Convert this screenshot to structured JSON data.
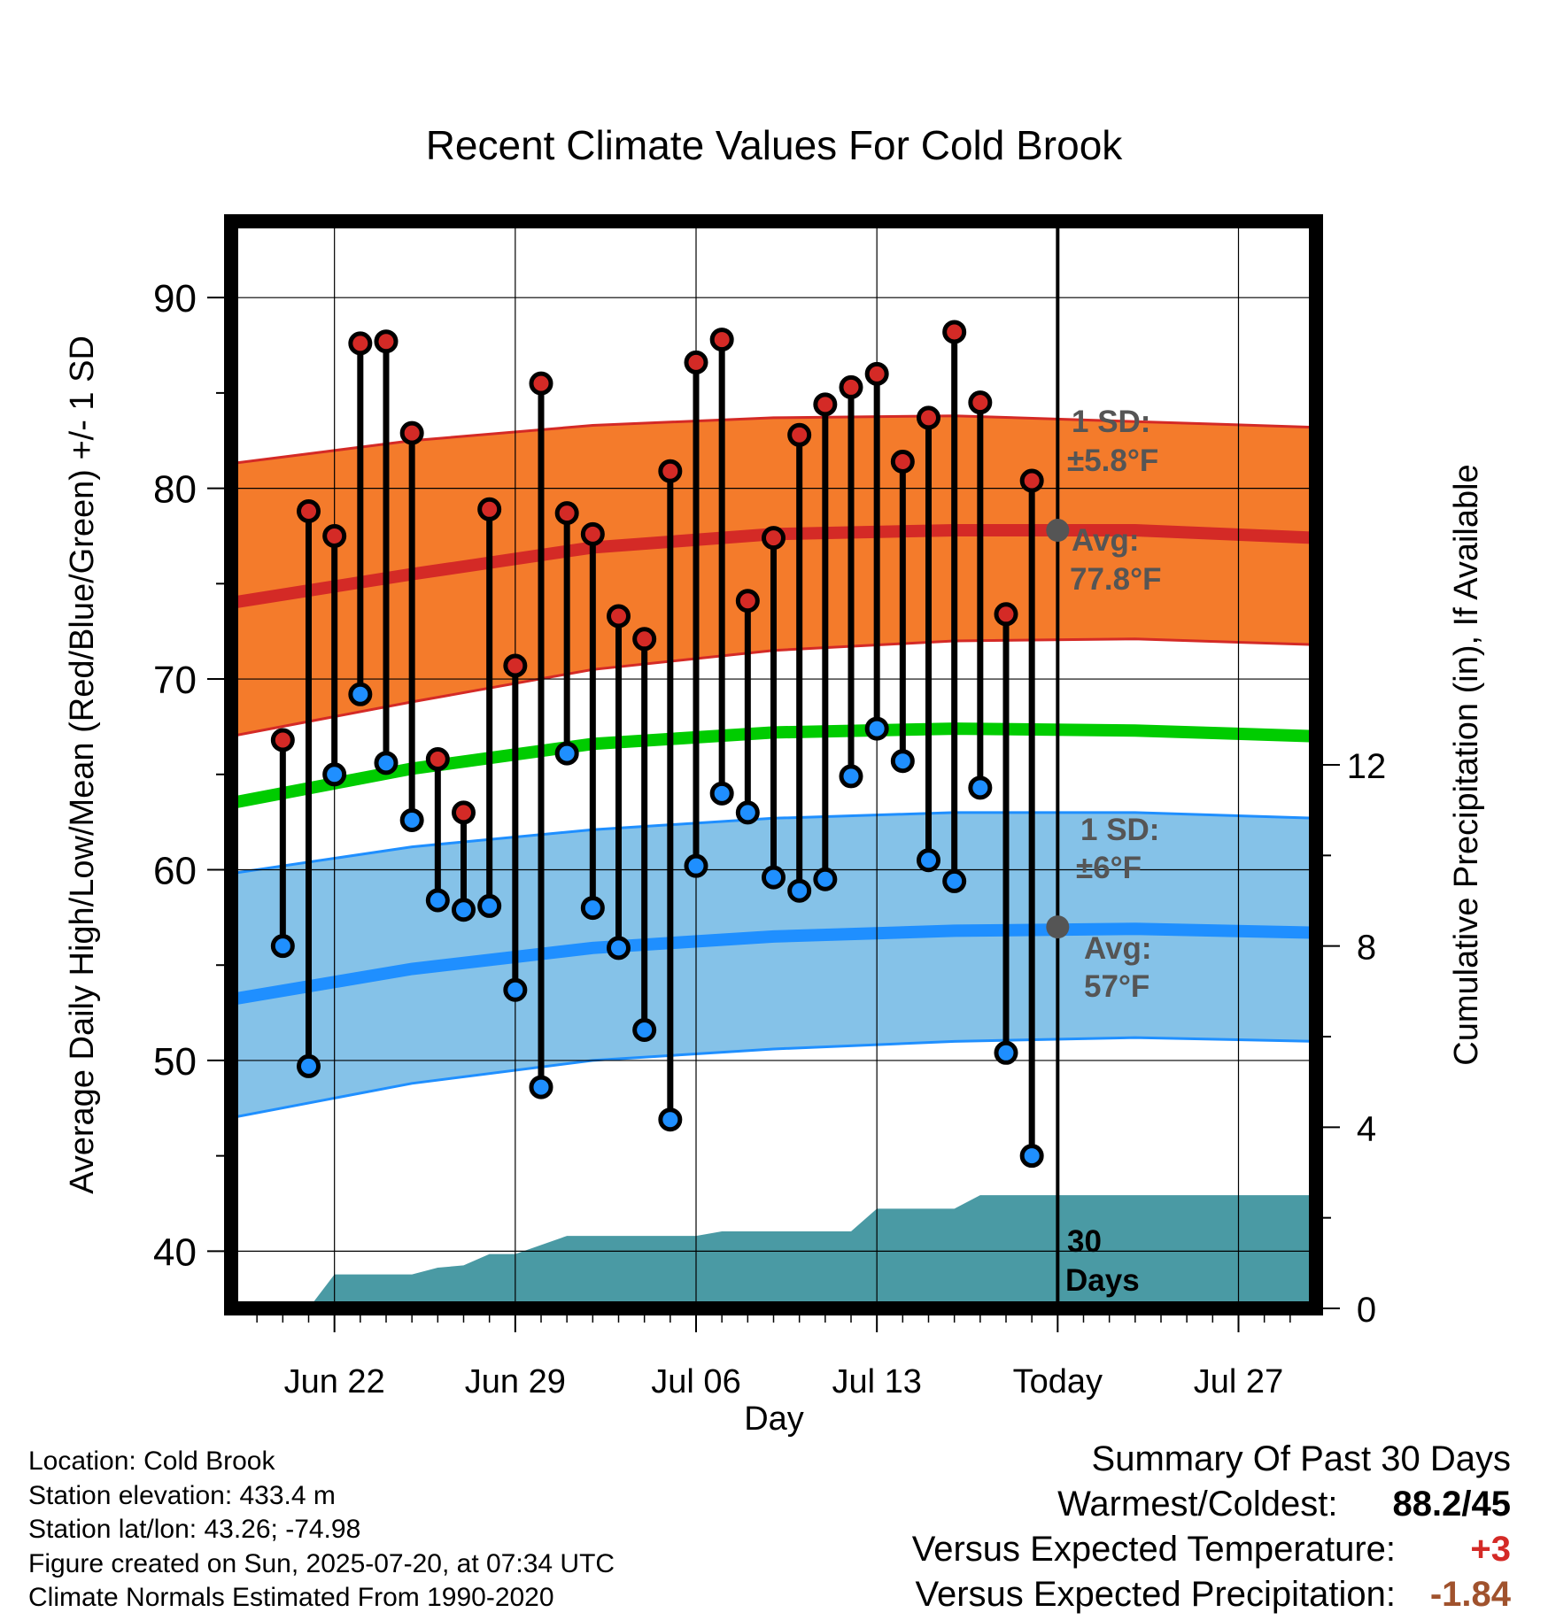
{
  "chart_data": {
    "type": "line",
    "title": "Recent Climate Values For Cold Brook",
    "xlabel": "Day",
    "ylabel": "Average Daily High/Low/Mean (Red/Blue/Green) +/- 1 SD",
    "y2label": "Cumulative Precipitation (in), If Available",
    "ylim": [
      37,
      94
    ],
    "y2lim": [
      0,
      24
    ],
    "y_ticks": [
      "90",
      "80",
      "70",
      "60",
      "50",
      "40"
    ],
    "y2_ticks": [
      "12",
      "8",
      "4",
      "0"
    ],
    "x_ticks": [
      "Jun 22",
      "Jun 29",
      "Jul 06",
      "Jul 13",
      "Today",
      "Jul 27"
    ],
    "x_range": [
      "2025-06-18",
      "2025-07-30"
    ],
    "grid": true,
    "days": [
      "2025-06-20",
      "2025-06-21",
      "2025-06-22",
      "2025-06-23",
      "2025-06-24",
      "2025-06-25",
      "2025-06-26",
      "2025-06-27",
      "2025-06-28",
      "2025-06-29",
      "2025-06-30",
      "2025-07-01",
      "2025-07-02",
      "2025-07-03",
      "2025-07-04",
      "2025-07-05",
      "2025-07-06",
      "2025-07-07",
      "2025-07-08",
      "2025-07-09",
      "2025-07-10",
      "2025-07-11",
      "2025-07-12",
      "2025-07-13",
      "2025-07-14",
      "2025-07-15",
      "2025-07-16",
      "2025-07-17",
      "2025-07-18",
      "2025-07-19"
    ],
    "highs": [
      66.8,
      78.8,
      77.5,
      87.6,
      87.7,
      82.9,
      65.8,
      63.0,
      78.9,
      70.7,
      85.5,
      78.7,
      77.6,
      73.3,
      72.1,
      80.9,
      86.6,
      87.8,
      74.1,
      77.4,
      82.8,
      84.4,
      85.3,
      86.0,
      81.4,
      83.7,
      88.2,
      84.5,
      73.4,
      80.4
    ],
    "lows": [
      56.0,
      49.7,
      65.0,
      69.2,
      65.6,
      62.6,
      58.4,
      57.9,
      58.1,
      53.7,
      48.6,
      66.1,
      58.0,
      55.9,
      51.6,
      46.9,
      60.2,
      64.0,
      63.0,
      59.6,
      58.9,
      59.5,
      64.9,
      67.4,
      65.7,
      60.5,
      59.4,
      64.3,
      50.4,
      45.0
    ],
    "normals": {
      "x": [
        "2025-06-18",
        "2025-06-25",
        "2025-07-02",
        "2025-07-09",
        "2025-07-16",
        "2025-07-23",
        "2025-07-30"
      ],
      "high_mean": [
        74.0,
        75.5,
        76.9,
        77.6,
        77.8,
        77.8,
        77.4
      ],
      "high_upper": [
        81.3,
        82.5,
        83.3,
        83.7,
        83.8,
        83.5,
        83.2
      ],
      "high_lower": [
        67.0,
        68.8,
        70.5,
        71.5,
        72.0,
        72.1,
        71.8
      ],
      "mean": [
        63.5,
        65.3,
        66.6,
        67.2,
        67.4,
        67.3,
        67.0
      ],
      "low_mean": [
        53.2,
        54.8,
        55.9,
        56.5,
        56.8,
        56.9,
        56.7
      ],
      "low_upper": [
        59.8,
        61.2,
        62.1,
        62.7,
        63.0,
        63.0,
        62.7
      ],
      "low_lower": [
        47.0,
        48.8,
        50.0,
        50.6,
        51.0,
        51.2,
        51.0
      ]
    },
    "precip_cumulative": {
      "x": [
        "2025-06-21",
        "2025-06-22",
        "2025-06-25",
        "2025-06-26",
        "2025-06-27",
        "2025-06-28",
        "2025-06-29",
        "2025-07-01",
        "2025-07-06",
        "2025-07-07",
        "2025-07-12",
        "2025-07-13",
        "2025-07-16",
        "2025-07-17",
        "2025-07-30"
      ],
      "values": [
        0.0,
        0.75,
        0.75,
        0.9,
        0.95,
        1.2,
        1.2,
        1.6,
        1.6,
        1.7,
        1.7,
        2.2,
        2.2,
        2.5,
        2.5
      ]
    },
    "annotations": {
      "high_sd_label": "1 SD:",
      "high_sd_value": "±5.8°F",
      "high_avg_label": "Avg:",
      "high_avg_value": "77.8°F",
      "low_sd_label": "1 SD:",
      "low_sd_value": "±6°F",
      "low_avg_label": "Avg:",
      "low_avg_value": "57°F",
      "period_line1": "30",
      "period_line2": "Days",
      "today_high_avg": 77.8,
      "today_low_avg": 57.0
    },
    "colors": {
      "high_band": "#f47b2b",
      "high_line": "#d42a26",
      "high_point": "#d42a26",
      "low_band": "#85c2e8",
      "low_line": "#1f8fff",
      "low_point": "#1f8fff",
      "mean_line": "#00cc00",
      "precip": "#4a9aa4",
      "annotation": "#555555"
    }
  },
  "footer": {
    "location": "Location: Cold Brook",
    "elevation": "Station elevation: 433.4 m",
    "latlon": "Station lat/lon: 43.26; -74.98",
    "created": "Figure created on Sun, 2025-07-20, at 07:34 UTC",
    "normals": "Climate Normals Estimated From 1990-2020"
  },
  "summary": {
    "title": "Summary Of Past 30 Days",
    "warmest_label": "Warmest/Coldest:",
    "warmest_value": "88.2/45",
    "temp_label": "Versus Expected Temperature:",
    "temp_value": "+3",
    "precip_label": "Versus Expected Precipitation:",
    "precip_value": "-1.84",
    "temp_color": "#d42a26",
    "precip_color": "#a0522d"
  }
}
